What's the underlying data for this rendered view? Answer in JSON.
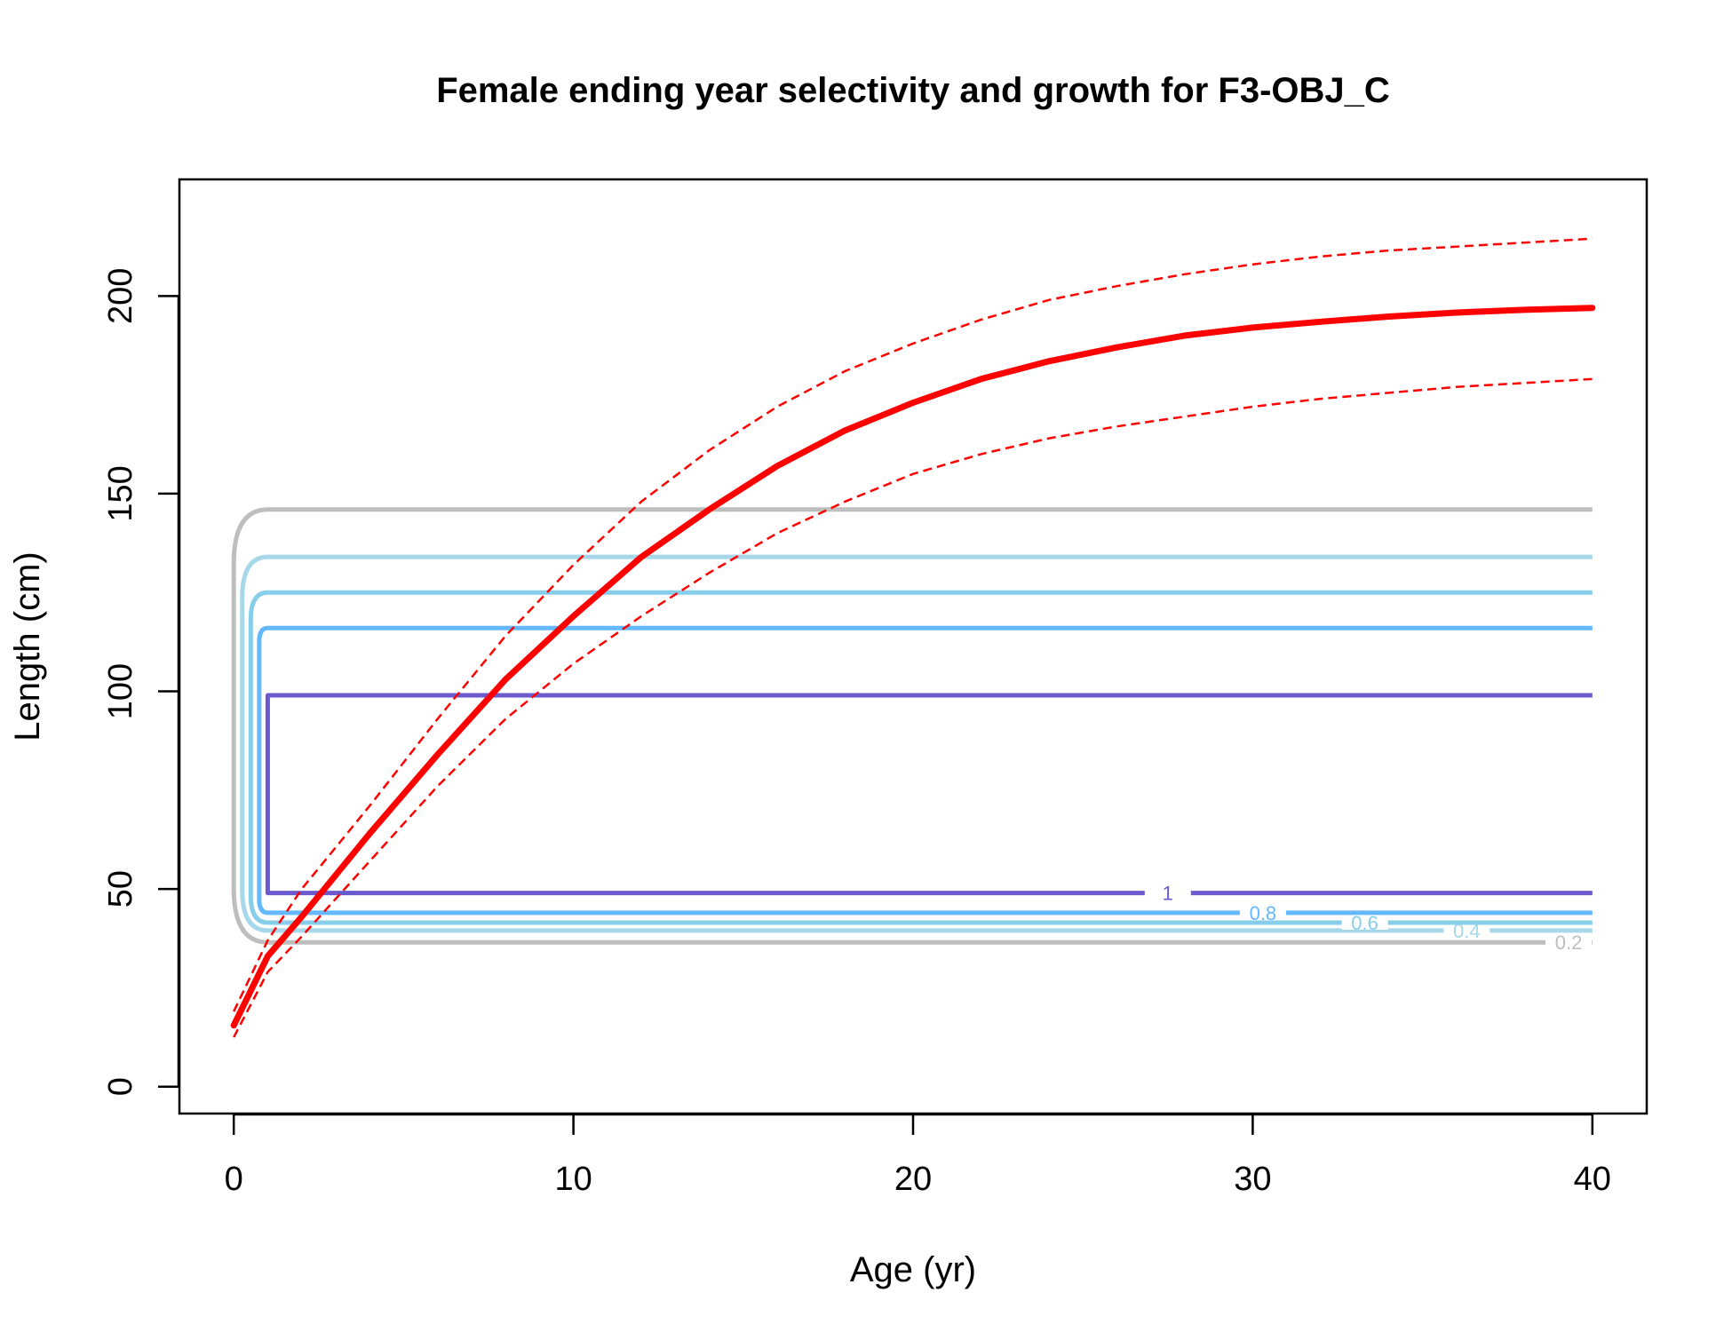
{
  "chart_data": {
    "type": "line",
    "title": "Female ending year selectivity and growth for F3-OBJ_C",
    "xlabel": "Age (yr)",
    "ylabel": "Length (cm)",
    "xlim": [
      -1.6,
      41.6
    ],
    "ylim": [
      -6.8,
      229.5
    ],
    "x_ticks": [
      0,
      10,
      20,
      30,
      40
    ],
    "y_ticks": [
      0,
      50,
      100,
      150,
      200
    ],
    "grid": false,
    "legend": "none",
    "growth": {
      "color": "#ff0000",
      "ages": [
        0,
        1,
        2,
        4,
        6,
        8,
        10,
        12,
        14,
        16,
        18,
        20,
        22,
        24,
        26,
        28,
        30,
        32,
        34,
        36,
        38,
        40
      ],
      "mean": [
        15.5,
        33,
        43,
        64,
        84,
        103,
        119,
        134,
        146,
        157,
        166,
        173,
        179,
        183.5,
        187,
        190,
        192,
        193.5,
        194.8,
        195.8,
        196.5,
        197
      ],
      "upper": [
        19,
        37,
        50,
        71,
        93,
        114,
        132,
        148,
        161,
        172,
        181,
        188,
        194,
        199,
        202.5,
        205.5,
        208,
        210,
        211.5,
        212.5,
        213.5,
        214.5
      ],
      "lower": [
        12.5,
        29,
        38,
        57,
        76,
        93,
        107,
        119,
        130,
        140,
        148,
        155,
        160,
        164,
        167,
        169.5,
        172,
        174,
        175.5,
        177,
        178,
        179
      ]
    },
    "selectivity_contours": [
      {
        "level": "0.2",
        "color": "#bebebe",
        "y_low": 36.5,
        "y_high": 146,
        "label_age": 39.3
      },
      {
        "level": "0.4",
        "color": "#a6d8ea",
        "y_low": 39.5,
        "y_high": 134,
        "label_age": 36.3
      },
      {
        "level": "0.6",
        "color": "#87ceeb",
        "y_low": 41.5,
        "y_high": 125,
        "label_age": 33.3
      },
      {
        "level": "0.8",
        "color": "#63b8ff",
        "y_low": 44,
        "y_high": 116,
        "label_age": 30.3
      },
      {
        "level": "1",
        "color": "#6a5acd",
        "y_low": 49,
        "y_high": 99,
        "label_age": 27.5
      }
    ]
  }
}
